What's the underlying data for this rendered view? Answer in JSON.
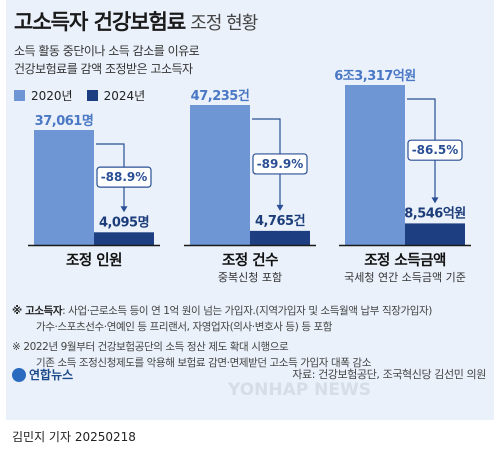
{
  "title": {
    "main": "고소득자 건강보험료",
    "sub": "조정 현황"
  },
  "subtitle": [
    "소득 활동 중단이나 소득 감소를 이유로",
    "건강보험료를 감액 조정받은 고소득자"
  ],
  "legend": [
    "2020년",
    "2024년"
  ],
  "colors": {
    "y2020": "#6e96d4",
    "y2024": "#1d3f82",
    "background": "#eaf1fa",
    "pct_border": "#2a4f95"
  },
  "chart_data": [
    {
      "type": "bar",
      "title": "조정 인원",
      "subtitle": "",
      "categories": [
        "2020년",
        "2024년"
      ],
      "values": [
        37061,
        4095
      ],
      "labels": [
        "37,061명",
        "4,095명"
      ],
      "change": "-88.9%"
    },
    {
      "type": "bar",
      "title": "조정 건수",
      "subtitle": "중복신청 포함",
      "categories": [
        "2020년",
        "2024년"
      ],
      "values": [
        47235,
        4765
      ],
      "labels": [
        "47,235건",
        "4,765건"
      ],
      "change": "-89.9%"
    },
    {
      "type": "bar",
      "title": "조정 소득금액",
      "subtitle": "국세청 연간 소득금액 기준",
      "categories": [
        "2020년",
        "2024년"
      ],
      "values": [
        63317,
        8546
      ],
      "unit": "억원",
      "labels": [
        "6조3,317억원",
        "8,546억원"
      ],
      "change": "-86.5%"
    }
  ],
  "notes": {
    "n1_key": "※ 고소득자",
    "n1_text": ": 사업·근로소득 등이 연 1억 원이 넘는 가입자.(지역가입자 및 소득월액 납부 직장가입자)",
    "n1_cont": "가수·스포츠선수·연예인 등 프리랜서, 자영업자(의사·변호사 등) 등 포함",
    "n2_text": "※ 2022년 9월부터 건강보험공단의 소득 정산 제도 확대 시행으로",
    "n2_cont": "기존 소득 조정신청제도를 악용해 보험료 감면·면제받던 고소득 가입자 대폭 감소"
  },
  "logo": "연합뉴스",
  "source": "자료: 건강보험공단, 조국혁신당 김선민 의원",
  "watermark": "YONHAP NEWS",
  "footer": "김민지 기자  20250218"
}
